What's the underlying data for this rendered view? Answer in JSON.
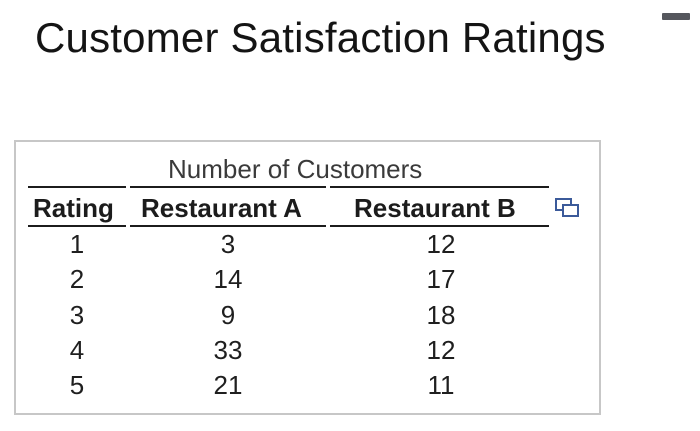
{
  "title": "Customer Satisfaction Ratings",
  "caption": "Number of Customers",
  "columns": [
    "Rating",
    "Restaurant A",
    "Restaurant B"
  ],
  "rows": [
    [
      "1",
      "3",
      "12"
    ],
    [
      "2",
      "14",
      "17"
    ],
    [
      "3",
      "9",
      "18"
    ],
    [
      "4",
      "33",
      "12"
    ],
    [
      "5",
      "21",
      "11"
    ]
  ],
  "icons": {
    "copy": "copy-icon"
  },
  "colors": {
    "text": "#1f1f1f",
    "border": "#c7c7c7",
    "icon": "#3b5a9a"
  }
}
